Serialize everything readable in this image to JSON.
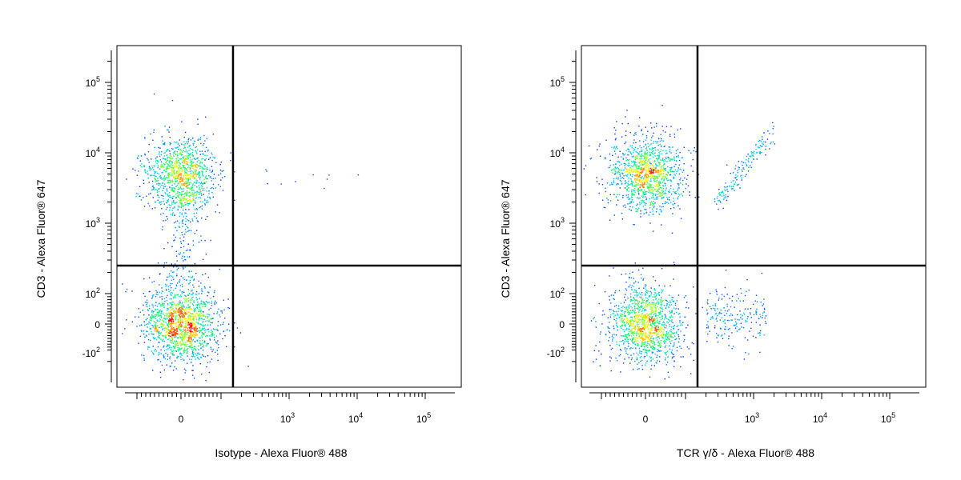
{
  "chart_data": [
    {
      "type": "scatter",
      "title": "",
      "xlabel": "Isotype - Alexa Fluor® 488",
      "ylabel": "CD3 - Alexa Fluor® 647",
      "x_ticks": [
        {
          "base": "0",
          "exp": ""
        },
        {
          "base": "10",
          "exp": "3"
        },
        {
          "base": "10",
          "exp": "4"
        },
        {
          "base": "10",
          "exp": "5"
        }
      ],
      "y_ticks": [
        {
          "base": "10",
          "exp": "5"
        },
        {
          "base": "10",
          "exp": "4"
        },
        {
          "base": "10",
          "exp": "3"
        },
        {
          "base": "10",
          "exp": "2"
        },
        {
          "base": "0",
          "exp": ""
        },
        {
          "base": "-10",
          "exp": "2"
        }
      ],
      "quadrant_gate": {
        "x": 150,
        "y": 250
      },
      "populations": [
        {
          "name": "CD3+ isotype-",
          "x_center": 0,
          "y_center": 5000,
          "n_points": 1100
        },
        {
          "name": "CD3- isotype-",
          "x_center": 0,
          "y_center": 0,
          "n_points": 1500
        },
        {
          "name": "bridge",
          "x_center": 0,
          "y_center": 700,
          "n_points": 150
        },
        {
          "name": "isotype+ sparse",
          "x_center": 700,
          "y_center": 4000,
          "n_points": 10
        }
      ],
      "density_colormap": [
        "#0000ff",
        "#00c8ff",
        "#00ff60",
        "#ffff00",
        "#ff0000"
      ]
    },
    {
      "type": "scatter",
      "title": "",
      "xlabel": "TCR γ/δ - Alexa Fluor® 488",
      "ylabel": "CD3 - Alexa Fluor® 647",
      "x_ticks": [
        {
          "base": "0",
          "exp": ""
        },
        {
          "base": "10",
          "exp": "3"
        },
        {
          "base": "10",
          "exp": "4"
        },
        {
          "base": "10",
          "exp": "5"
        }
      ],
      "y_ticks": [
        {
          "base": "10",
          "exp": "5"
        },
        {
          "base": "10",
          "exp": "4"
        },
        {
          "base": "10",
          "exp": "3"
        },
        {
          "base": "10",
          "exp": "2"
        },
        {
          "base": "0",
          "exp": ""
        },
        {
          "base": "-10",
          "exp": "2"
        }
      ],
      "quadrant_gate": {
        "x": 150,
        "y": 250
      },
      "populations": [
        {
          "name": "CD3+ TCRgd-",
          "x_center": 0,
          "y_center": 5000,
          "n_points": 1200
        },
        {
          "name": "CD3- TCRgd-",
          "x_center": 0,
          "y_center": 0,
          "n_points": 1300
        },
        {
          "name": "CD3+ TCRgd+ diagonal",
          "x_from": 300,
          "y_from": 2000,
          "x_to": 1800,
          "y_to": 20000,
          "n_points": 160
        },
        {
          "name": "CD3- TCRgd low",
          "x_center": 500,
          "y_center": 30,
          "n_points": 200
        }
      ],
      "density_colormap": [
        "#0000ff",
        "#00c8ff",
        "#00ff60",
        "#ffff00",
        "#ff0000"
      ]
    }
  ]
}
